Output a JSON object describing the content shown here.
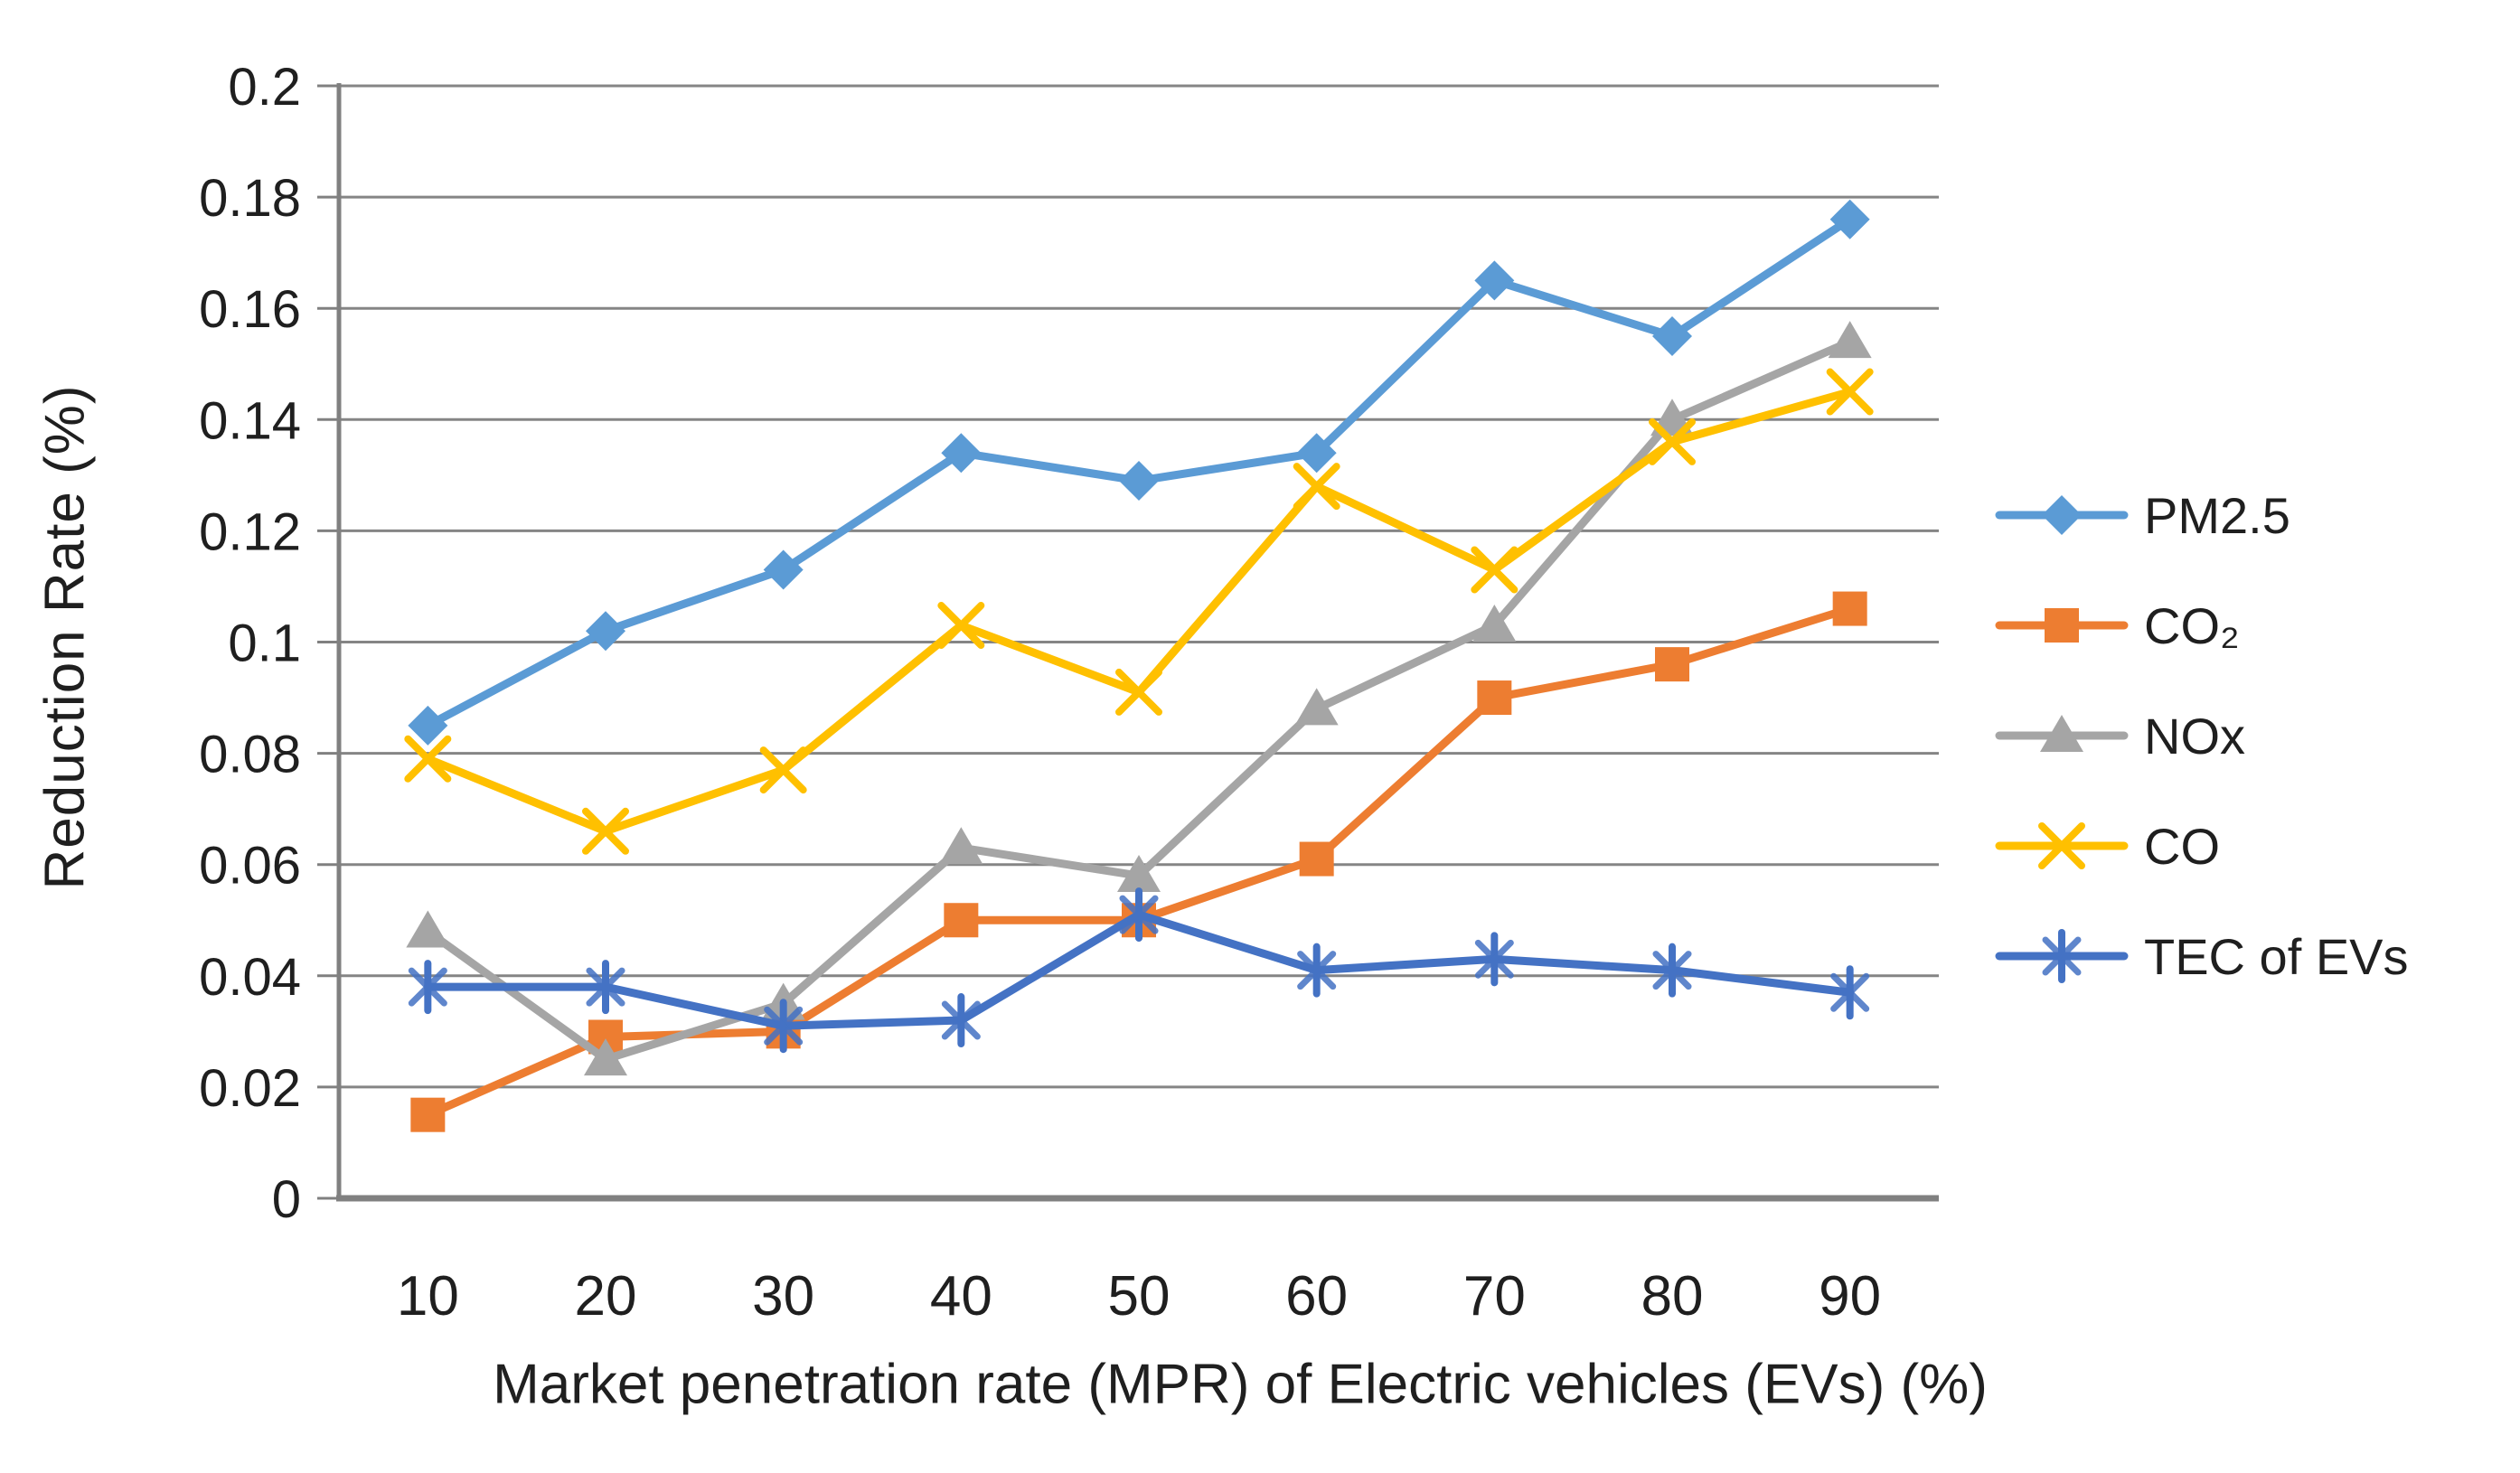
{
  "chart_data": {
    "type": "line",
    "title": "",
    "xlabel": "Market penetration rate (MPR) of Electric vehicles (EVs) (%)",
    "ylabel": "Reduction Rate (%)",
    "x": [
      10,
      20,
      30,
      40,
      50,
      60,
      70,
      80,
      90
    ],
    "x_tick_labels": [
      "10",
      "20",
      "30",
      "40",
      "50",
      "60",
      "70",
      "80",
      "90"
    ],
    "ylim": [
      0,
      0.2
    ],
    "y_tick_step": 0.02,
    "y_tick_labels": [
      "0",
      "0.02",
      "0.04",
      "0.06",
      "0.08",
      "0.1",
      "0.12",
      "0.14",
      "0.16",
      "0.18",
      "0.2"
    ],
    "grid": true,
    "legend_position": "right",
    "axis_color": "#808080",
    "gridline_color": "#858585",
    "series": [
      {
        "name": "PM2.5",
        "color": "#5B9BD5",
        "marker": "diamond",
        "values": [
          0.085,
          0.102,
          0.113,
          0.134,
          0.129,
          0.134,
          0.165,
          0.155,
          0.176
        ]
      },
      {
        "name": "CO₂",
        "color": "#ED7D31",
        "marker": "square",
        "values": [
          0.015,
          0.029,
          0.03,
          0.05,
          0.05,
          0.061,
          0.09,
          0.096,
          0.106
        ]
      },
      {
        "name": "NOx",
        "color": "#A5A5A5",
        "marker": "triangle",
        "values": [
          0.048,
          0.025,
          0.035,
          0.063,
          0.058,
          0.088,
          0.103,
          0.14,
          0.154
        ]
      },
      {
        "name": "CO",
        "color": "#FFC000",
        "marker": "x",
        "values": [
          0.079,
          0.066,
          0.077,
          0.103,
          0.091,
          0.128,
          0.113,
          0.136,
          0.145
        ]
      },
      {
        "name": "TEC of EVs",
        "color": "#4472C4",
        "marker": "asterisk",
        "values": [
          0.038,
          0.038,
          0.031,
          0.032,
          0.051,
          0.041,
          0.043,
          0.041,
          0.037
        ]
      }
    ]
  }
}
